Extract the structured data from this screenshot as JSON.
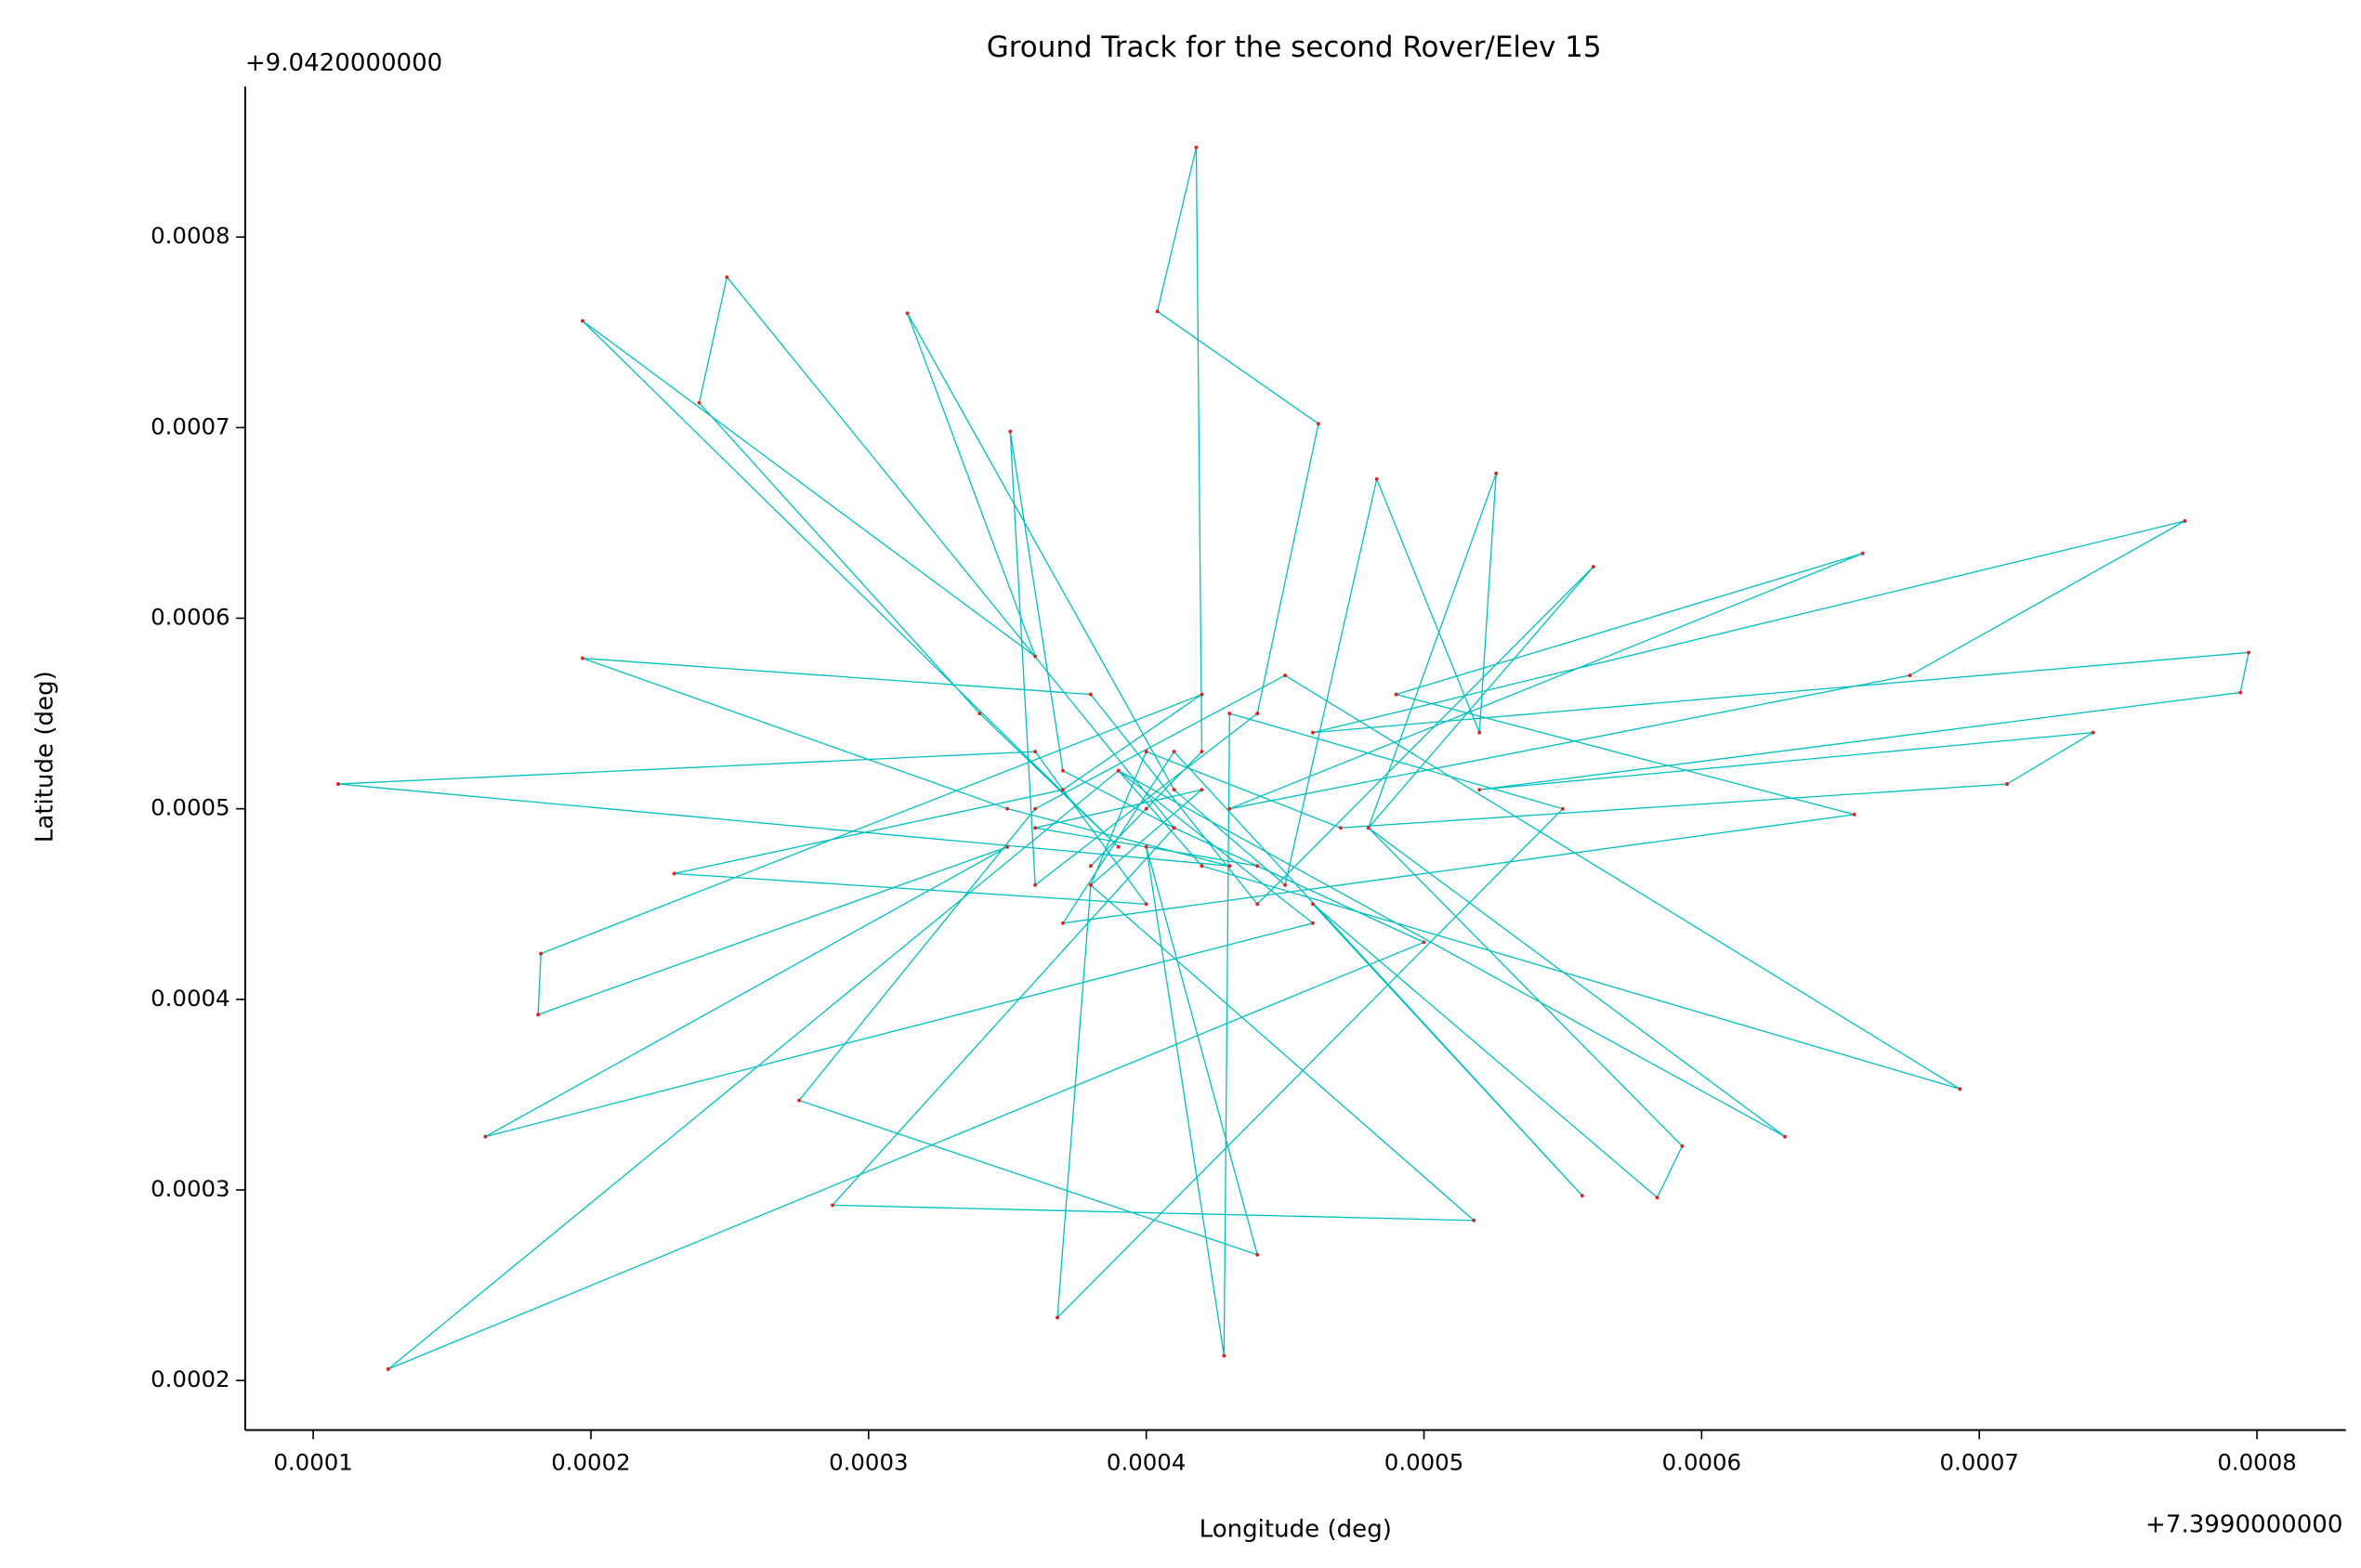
{
  "chart_data": {
    "type": "line",
    "title": "Ground Track for the second Rover/Elev 15",
    "xlabel": "Longitude (deg)",
    "ylabel": "Latitude (deg)",
    "x_offset_text": "+7.3990000000",
    "y_offset_text": "+9.0420000000",
    "line_color": "#00bfbf",
    "marker_color": "#d62728",
    "xlim": [
      7.55e-05,
      0.000832
    ],
    "ylim": [
      0.000174,
      0.000879
    ],
    "xticks": [
      0.0001,
      0.0002,
      0.0003,
      0.0004,
      0.0005,
      0.0006,
      0.0007,
      0.0008
    ],
    "yticks": [
      0.0002,
      0.0003,
      0.0004,
      0.0005,
      0.0006,
      0.0007,
      0.0008
    ],
    "x": [
      0.0004,
      0.00038,
      0.00042,
      0.000418,
      0.000404,
      0.000462,
      0.00044,
      0.00036,
      0.000351,
      0.00037,
      0.00041,
      0.000249,
      0.000239,
      0.00034,
      0.00039,
      0.000197,
      0.00036,
      0.000314,
      0.00041,
      0.00045,
      0.000483,
      0.00052,
      0.000526,
      0.00048,
      0.000561,
      0.00044,
      0.00038,
      0.000197,
      0.00035,
      0.00043,
      0.000109,
      0.00036,
      0.0004,
      0.00023,
      0.00037,
      0.00042,
      0.000182,
      0.000181,
      0.00035,
      0.000162,
      0.00046,
      0.00039,
      0.000127,
      0.0005,
      0.00041,
      0.000287,
      0.000518,
      0.00038,
      0.000368,
      0.00055,
      0.00043,
      0.000428,
      0.0004,
      0.00044,
      0.000275,
      0.00036,
      0.00045,
      0.000693,
      0.00042,
      0.00039,
      0.00063,
      0.00048,
      0.000593,
      0.000584,
      0.00046,
      0.000557,
      0.00041,
      0.00037,
      0.000655,
      0.00049,
      0.000658,
      0.00043,
      0.000675,
      0.000774,
      0.00046,
      0.000797,
      0.000794,
      0.00052,
      0.000741,
      0.00071,
      0.00047,
      0.0004,
      0.00038,
      0.00042,
      0.00036,
      0.00044
    ],
    "values": [
      0.0005,
      0.00047,
      0.00053,
      0.000847,
      0.000761,
      0.000702,
      0.00055,
      0.00046,
      0.000698,
      0.00052,
      0.00049,
      0.000779,
      0.000713,
      0.00055,
      0.00048,
      0.000756,
      0.00058,
      0.00076,
      0.00051,
      0.00046,
      0.000673,
      0.00054,
      0.000676,
      0.00049,
      0.000627,
      0.00045,
      0.00056,
      0.000579,
      0.0005,
      0.00047,
      0.000513,
      0.00053,
      0.00045,
      0.000466,
      0.00051,
      0.00056,
      0.000424,
      0.000392,
      0.00048,
      0.000328,
      0.00044,
      0.00052,
      0.000206,
      0.00043,
      0.00049,
      0.000292,
      0.000284,
      0.00046,
      0.000233,
      0.0005,
      0.00055,
      0.000213,
      0.00048,
      0.000266,
      0.000347,
      0.0005,
      0.00057,
      0.000353,
      0.00047,
      0.00052,
      0.000328,
      0.00049,
      0.000323,
      0.000296,
      0.00045,
      0.000297,
      0.00053,
      0.00044,
      0.000497,
      0.00056,
      0.000634,
      0.0005,
      0.00057,
      0.000651,
      0.00054,
      0.000582,
      0.000561,
      0.00051,
      0.00054,
      0.000513,
      0.00049,
      0.00053,
      0.00046,
      0.00051,
      0.00049,
      0.00047
    ]
  }
}
